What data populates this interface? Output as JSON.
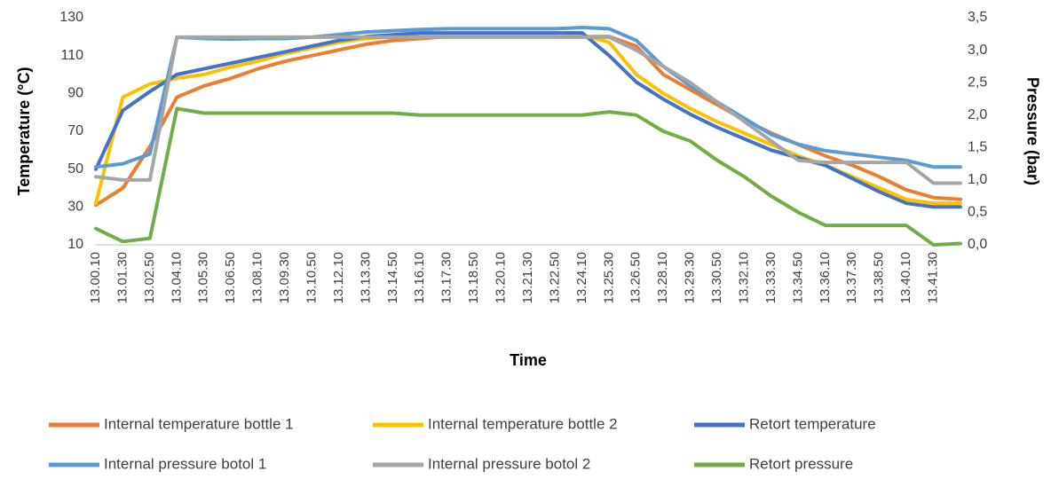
{
  "chart_data": {
    "type": "line",
    "x_label": "Time",
    "y_label": "Temperature (°C)",
    "y2_label": "Pressure (bar)",
    "categories": [
      "13.00.10",
      "13.01.30",
      "13.02.50",
      "13.04.10",
      "13.05.30",
      "13.06.50",
      "13.08.10",
      "13.09.30",
      "13.10.50",
      "13.12.10",
      "13.13.30",
      "13.14.50",
      "13.16.10",
      "13.17.30",
      "13.18.50",
      "13.20.10",
      "13.21.30",
      "13.22.50",
      "13.24.10",
      "13.25.30",
      "13.26.50",
      "13.28.10",
      "13.29.30",
      "13.30.50",
      "13.32.10",
      "13.33.30",
      "13.34.50",
      "13.36.10",
      "13.37.30",
      "13.38.50",
      "13.40.10",
      "13.41.30",
      null
    ],
    "ylim": [
      10,
      130
    ],
    "yticks": [
      10,
      30,
      50,
      70,
      90,
      110,
      130
    ],
    "y2lim": [
      0,
      3.5
    ],
    "y2ticks": [
      {
        "value": 0,
        "label": "0,0"
      },
      {
        "value": 0.5,
        "label": "0,5"
      },
      {
        "value": 1,
        "label": "1,0"
      },
      {
        "value": 1.5,
        "label": "1,5"
      },
      {
        "value": 2,
        "label": "2,0"
      },
      {
        "value": 2.5,
        "label": "2,5"
      },
      {
        "value": 3,
        "label": "3,0"
      },
      {
        "value": 3.5,
        "label": "3,5"
      }
    ],
    "grid": false,
    "legend": "bottom",
    "series": [
      {
        "name": "Internal temperature bottle 1",
        "color": "#ed7d31",
        "values": [
          31,
          40,
          62,
          88,
          94,
          98,
          103,
          107,
          110,
          113,
          116,
          118,
          119,
          120,
          120,
          120,
          120,
          120,
          120,
          120,
          115,
          100,
          92,
          84,
          76,
          69,
          63,
          57,
          52,
          46,
          39,
          35,
          34
        ]
      },
      {
        "name": "Internal temperature bottle 2",
        "color": "#ffc000",
        "values": [
          32,
          88,
          95,
          98,
          100,
          104,
          107,
          111,
          114,
          117,
          119,
          120,
          121,
          121,
          121,
          121,
          121,
          121,
          121,
          117,
          100,
          90,
          82,
          75,
          69,
          63,
          57,
          52,
          46,
          40,
          34,
          32,
          32
        ]
      },
      {
        "name": "Retort temperature",
        "color": "#4472c4",
        "values": [
          50,
          81,
          91,
          100,
          103,
          106,
          109,
          112,
          115,
          118,
          120,
          121,
          122,
          122,
          122,
          122,
          122,
          122,
          122,
          110,
          96,
          87,
          79,
          72,
          66,
          60,
          56,
          52,
          45,
          38,
          32,
          30,
          30
        ]
      },
      {
        "name": "Internal pressure botol 1",
        "color": "#5b9bd5",
        "axis": "y2",
        "values": [
          1.2,
          1.25,
          1.4,
          3.2,
          3.18,
          3.17,
          3.18,
          3.18,
          3.2,
          3.24,
          3.28,
          3.3,
          3.32,
          3.33,
          3.33,
          3.33,
          3.33,
          3.33,
          3.35,
          3.33,
          3.15,
          2.75,
          2.45,
          2.2,
          1.95,
          1.7,
          1.55,
          1.45,
          1.4,
          1.35,
          1.3,
          1.2,
          1.2
        ]
      },
      {
        "name": "Internal pressure botol 2",
        "color": "#a5a5a5",
        "axis": "y2",
        "values": [
          1.05,
          1.0,
          1.0,
          3.2,
          3.2,
          3.2,
          3.2,
          3.2,
          3.2,
          3.2,
          3.2,
          3.2,
          3.2,
          3.2,
          3.2,
          3.2,
          3.2,
          3.2,
          3.2,
          3.2,
          3.0,
          2.75,
          2.5,
          2.2,
          1.9,
          1.6,
          1.3,
          1.27,
          1.27,
          1.27,
          1.27,
          0.95,
          0.95
        ]
      },
      {
        "name": "Retort pressure",
        "color": "#70ad47",
        "axis": "y2",
        "values": [
          0.25,
          0.05,
          0.1,
          2.1,
          2.03,
          2.03,
          2.03,
          2.03,
          2.03,
          2.03,
          2.03,
          2.03,
          2.0,
          2.0,
          2.0,
          2.0,
          2.0,
          2.0,
          2.0,
          2.05,
          2.0,
          1.75,
          1.6,
          1.3,
          1.05,
          0.75,
          0.5,
          0.3,
          0.3,
          0.3,
          0.3,
          0.0,
          0.02
        ]
      }
    ]
  }
}
